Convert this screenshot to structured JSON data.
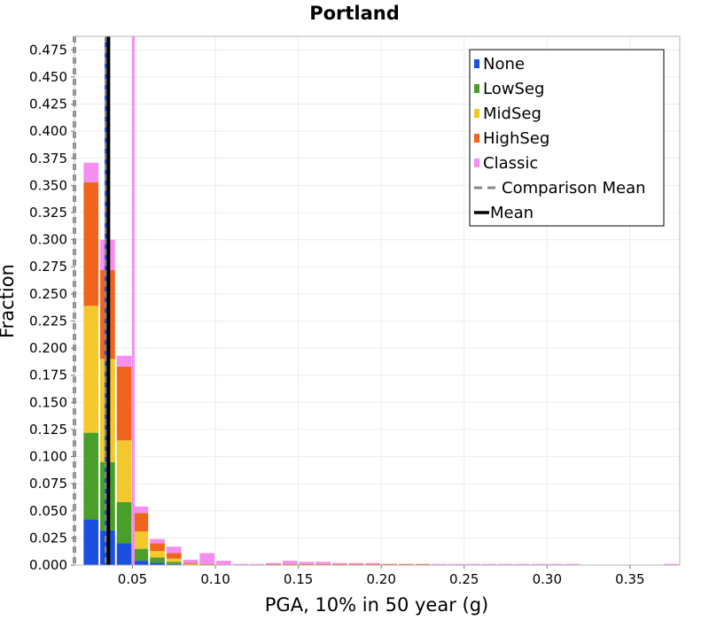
{
  "chart_data": {
    "type": "bar",
    "subtype": "stacked-histogram",
    "title": "Portland",
    "xlabel": "PGA, 10% in 50 year (g)",
    "ylabel": "Fraction",
    "xlim": [
      0.015,
      0.38
    ],
    "ylim": [
      0,
      0.4875
    ],
    "bin_width": 0.01,
    "bin_centers": [
      0.025,
      0.035,
      0.045,
      0.055,
      0.065,
      0.075,
      0.085,
      0.095,
      0.105,
      0.115,
      0.125,
      0.135,
      0.145,
      0.155,
      0.165,
      0.175,
      0.185,
      0.195,
      0.205,
      0.215,
      0.225,
      0.235,
      0.245,
      0.255,
      0.265,
      0.275,
      0.285,
      0.295,
      0.305,
      0.315,
      0.325,
      0.335,
      0.345,
      0.355,
      0.365,
      0.375
    ],
    "series": [
      {
        "name": "None",
        "color": "#1a4fe0",
        "values": [
          0.042,
          0.032,
          0.02,
          0.004,
          0.002,
          0.001,
          0,
          0,
          0,
          0,
          0,
          0,
          0,
          0,
          0,
          0,
          0,
          0,
          0,
          0,
          0,
          0,
          0,
          0,
          0,
          0,
          0,
          0,
          0,
          0,
          0,
          0,
          0,
          0,
          0,
          0
        ]
      },
      {
        "name": "LowSeg",
        "color": "#4a9e2a",
        "values": [
          0.08,
          0.063,
          0.038,
          0.011,
          0.005,
          0.002,
          0,
          0,
          0,
          0,
          0,
          0,
          0,
          0,
          0,
          0,
          0,
          0,
          0,
          0,
          0,
          0,
          0,
          0,
          0,
          0,
          0,
          0,
          0,
          0,
          0,
          0,
          0,
          0,
          0,
          0
        ]
      },
      {
        "name": "MidSeg",
        "color": "#f2c82a",
        "values": [
          0.117,
          0.095,
          0.057,
          0.016,
          0.006,
          0.003,
          0.001,
          0,
          0,
          0,
          0,
          0,
          0,
          0,
          0,
          0,
          0,
          0,
          0,
          0,
          0,
          0,
          0,
          0,
          0,
          0,
          0,
          0,
          0,
          0,
          0,
          0,
          0,
          0,
          0,
          0
        ]
      },
      {
        "name": "HighSeg",
        "color": "#f0651e",
        "values": [
          0.114,
          0.082,
          0.068,
          0.017,
          0.007,
          0.005,
          0.001,
          0.001,
          0,
          0,
          0,
          0.001,
          0.001,
          0.001,
          0.001,
          0.001,
          0.001,
          0.001,
          0.001,
          0.001,
          0.001,
          0,
          0,
          0,
          0,
          0,
          0,
          0,
          0,
          0,
          0,
          0,
          0,
          0,
          0,
          0
        ]
      },
      {
        "name": "Classic",
        "color": "#f58ef0",
        "values": [
          0.018,
          0.028,
          0.01,
          0.006,
          0.004,
          0.006,
          0.003,
          0.01,
          0.004,
          0.001,
          0.001,
          0.001,
          0.003,
          0.002,
          0.002,
          0.001,
          0.001,
          0.001,
          0,
          0,
          0,
          0.001,
          0.001,
          0.001,
          0.001,
          0.001,
          0.001,
          0.001,
          0.001,
          0.001,
          0,
          0,
          0,
          0,
          0,
          0.001
        ]
      }
    ],
    "vlines": [
      {
        "name": "Comparison Mean",
        "style": "dashed",
        "color": "#888888",
        "x": 0.034
      },
      {
        "name": "Mean",
        "style": "solid",
        "color": "#000000",
        "x": 0.0355
      },
      {
        "name": "None mean",
        "style": "solid",
        "color": "#1a4fe0",
        "x": 0.034
      },
      {
        "name": "LowSeg mean",
        "style": "solid",
        "color": "#4a9e2a",
        "x": 0.0345
      },
      {
        "name": "MidSeg mean",
        "style": "solid",
        "color": "#f2c82a",
        "x": 0.0348
      },
      {
        "name": "HighSeg mean",
        "style": "solid",
        "color": "#f0651e",
        "x": 0.0352
      },
      {
        "name": "Classic mean",
        "style": "solid",
        "color": "#f58ef0",
        "x": 0.0505
      }
    ],
    "left_edge_dashed": {
      "color": "#888888"
    },
    "x_ticks": [
      0.05,
      0.1,
      0.15,
      0.2,
      0.25,
      0.3,
      0.35
    ],
    "x_tick_labels": [
      "0.05",
      "0.10",
      "0.15",
      "0.20",
      "0.25",
      "0.30",
      "0.35"
    ],
    "y_ticks": [
      0,
      0.025,
      0.05,
      0.075,
      0.1,
      0.125,
      0.15,
      0.175,
      0.2,
      0.225,
      0.25,
      0.275,
      0.3,
      0.325,
      0.35,
      0.375,
      0.4,
      0.425,
      0.45,
      0.475
    ],
    "y_tick_labels": [
      "0.000",
      "0.025",
      "0.050",
      "0.075",
      "0.100",
      "0.125",
      "0.150",
      "0.175",
      "0.200",
      "0.225",
      "0.250",
      "0.275",
      "0.300",
      "0.325",
      "0.350",
      "0.375",
      "0.400",
      "0.425",
      "0.450",
      "0.475"
    ],
    "grid": true,
    "legend_position": "top-right",
    "legend": [
      {
        "label": "None",
        "kind": "swatch",
        "color": "#1a4fe0"
      },
      {
        "label": "LowSeg",
        "kind": "swatch",
        "color": "#4a9e2a"
      },
      {
        "label": "MidSeg",
        "kind": "swatch",
        "color": "#f2c82a"
      },
      {
        "label": "HighSeg",
        "kind": "swatch",
        "color": "#f0651e"
      },
      {
        "label": "Classic",
        "kind": "swatch",
        "color": "#f58ef0"
      },
      {
        "label": "Comparison Mean",
        "kind": "dashed",
        "color": "#888888"
      },
      {
        "label": "Mean",
        "kind": "line",
        "color": "#000000"
      }
    ]
  }
}
